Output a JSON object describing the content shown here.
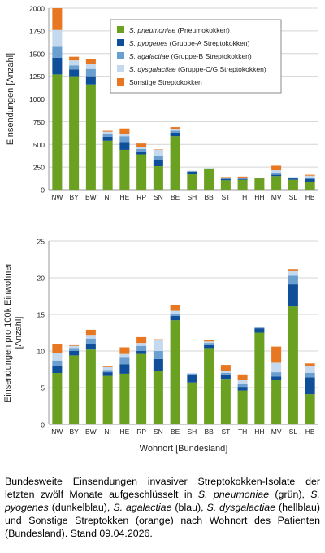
{
  "legend": [
    {
      "name_italic": "S. pneumoniae",
      "name_rest": " (Pneumokokken)",
      "color": "#6aa121"
    },
    {
      "name_italic": "S. pyogenes",
      "name_rest": " (Gruppe-A Streptokokken)",
      "color": "#0f4f9a"
    },
    {
      "name_italic": "S. agalactiae",
      "name_rest": " (Gruppe-B Streptokokken)",
      "color": "#6a9fd0"
    },
    {
      "name_italic": "S. dysgalactiae",
      "name_rest": " (Gruppe-C/G Streptokokken)",
      "color": "#c5d9ee"
    },
    {
      "name_italic": "",
      "name_rest": "Sonstige Streptokokken",
      "color": "#e87722"
    }
  ],
  "chart_data": [
    {
      "type": "bar",
      "stacked": true,
      "ylabel": "Einsendungen [Anzahl]",
      "xlabel": "",
      "ylim": [
        0,
        2000
      ],
      "yticks": [
        0,
        250,
        500,
        750,
        1000,
        1250,
        1500,
        1750,
        2000
      ],
      "grid": true,
      "legend_position": "top-right",
      "categories": [
        "NW",
        "BY",
        "BW",
        "NI",
        "HE",
        "RP",
        "SN",
        "BE",
        "SH",
        "BB",
        "ST",
        "TH",
        "HH",
        "MV",
        "SL",
        "HB"
      ],
      "series": [
        {
          "name": "S. pneumoniae (Pneumokokken)",
          "values": [
            1270,
            1250,
            1160,
            540,
            440,
            390,
            260,
            590,
            170,
            225,
            105,
            110,
            125,
            150,
            110,
            85
          ]
        },
        {
          "name": "S. pyogenes (Gruppe-A Streptokokken)",
          "values": [
            185,
            75,
            90,
            45,
            85,
            25,
            65,
            40,
            30,
            5,
            15,
            10,
            5,
            15,
            15,
            35
          ]
        },
        {
          "name": "S. agalactiae (Gruppe-B Streptokokken)",
          "values": [
            120,
            45,
            80,
            25,
            65,
            35,
            45,
            20,
            5,
            5,
            5,
            5,
            2,
            20,
            5,
            10
          ]
        },
        {
          "name": "S. dysgalactiae (Gruppe-C/G Streptokokken)",
          "values": [
            185,
            55,
            55,
            30,
            25,
            20,
            70,
            20,
            5,
            5,
            5,
            10,
            2,
            30,
            10,
            25
          ]
        },
        {
          "name": "Sonstige Streptokokken",
          "values": [
            240,
            40,
            55,
            10,
            60,
            40,
            5,
            20,
            0,
            0,
            10,
            10,
            0,
            50,
            0,
            10
          ]
        }
      ]
    },
    {
      "type": "bar",
      "stacked": true,
      "ylabel": "Einsendungen pro 100k Einwohner [Anzahl]",
      "xlabel": "Wohnort [Bundesland]",
      "ylim": [
        0,
        25
      ],
      "yticks": [
        0,
        5,
        10,
        15,
        20,
        25
      ],
      "grid": true,
      "categories": [
        "NW",
        "BY",
        "BW",
        "NI",
        "HE",
        "RP",
        "SN",
        "BE",
        "SH",
        "BB",
        "ST",
        "TH",
        "HH",
        "MV",
        "SL",
        "HB"
      ],
      "series": [
        {
          "name": "S. pneumoniae (Pneumokokken)",
          "values": [
            7.0,
            9.4,
            10.2,
            6.6,
            6.9,
            9.6,
            7.3,
            14.2,
            5.7,
            10.4,
            6.2,
            4.6,
            12.5,
            6.0,
            16.1,
            4.1
          ]
        },
        {
          "name": "S. pyogenes (Gruppe-A Streptokokken)",
          "values": [
            1.0,
            0.6,
            0.8,
            0.5,
            1.3,
            0.4,
            1.6,
            0.6,
            1.1,
            0.5,
            0.6,
            0.5,
            0.6,
            0.5,
            3.0,
            2.3
          ]
        },
        {
          "name": "S. agalactiae (Gruppe-B Streptokokken)",
          "values": [
            0.7,
            0.4,
            0.7,
            0.3,
            1.0,
            0.7,
            1.1,
            0.3,
            0.1,
            0.2,
            0.2,
            0.4,
            0.1,
            0.6,
            1.2,
            0.6
          ]
        },
        {
          "name": "S. dysgalactiae (Gruppe-C/G Streptokokken)",
          "values": [
            1.0,
            0.3,
            0.5,
            0.4,
            0.4,
            0.4,
            1.5,
            0.4,
            0.1,
            0.2,
            0.3,
            0.6,
            0.1,
            1.3,
            0.6,
            0.9
          ]
        },
        {
          "name": "Sonstige Streptokokken",
          "values": [
            1.3,
            0.2,
            0.7,
            0.1,
            0.9,
            0.8,
            0.1,
            0.8,
            0.0,
            0.2,
            0.8,
            0.7,
            0.0,
            2.2,
            0.3,
            0.4
          ]
        }
      ]
    }
  ],
  "caption": {
    "p1": "Bundesweite Einsendungen invasiver Streptokokken-Isolate der letzten zwölf Monate aufgeschlüsselt in ",
    "i1": "S. pneumoniae",
    "p2": " (grün), ",
    "i2": "S. pyogenes",
    "p3": " (dunkelblau), ",
    "i3": "S. agalactiae",
    "p4": " (blau), ",
    "i4": "S. dysgalactiae",
    "p5": " (hellblau) und Sonstige Streptokken (orange) nach Wohnort des Patienten (Bundesland). Stand 09.04.2026."
  }
}
